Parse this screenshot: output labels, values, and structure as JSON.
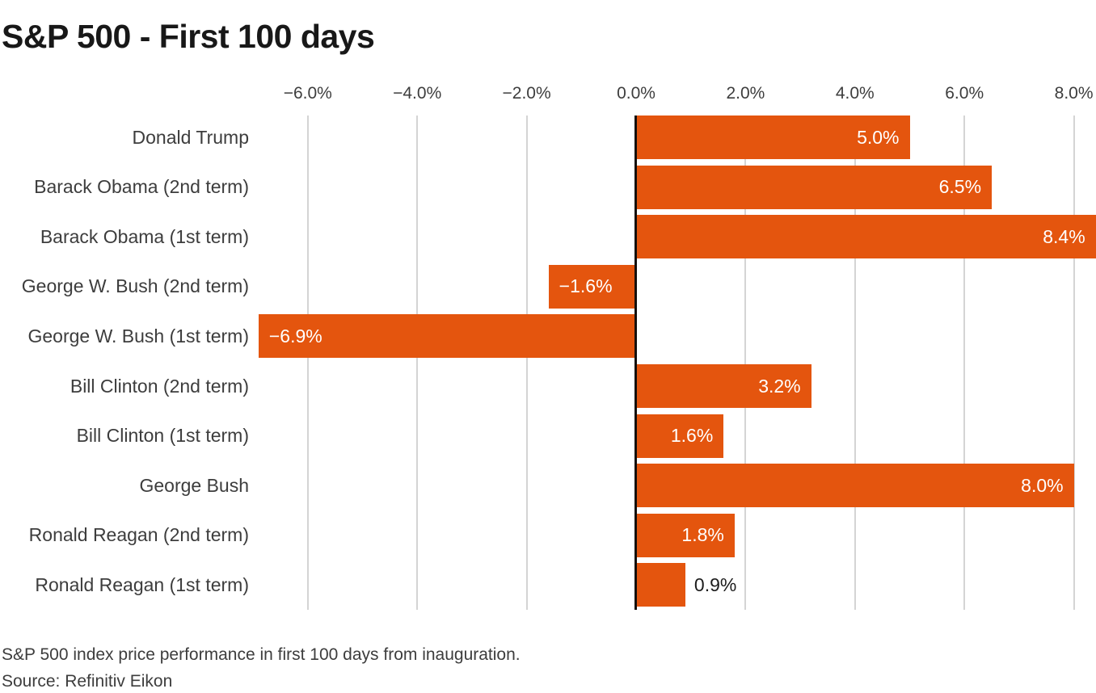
{
  "title": "S&P 500 - First 100 days",
  "footer": {
    "description": "S&P 500 index price performance in first 100 days from inauguration.",
    "source": "Source: Refinitiv Eikon"
  },
  "colors": {
    "bar": "#e4550e",
    "zero_axis": "#15100c",
    "gridline": "#d4d4d4",
    "title_text": "#181818",
    "label_text": "#3d3d3d",
    "value_label_inside": "#ffffff",
    "value_label_outside": "#1c1c1c"
  },
  "chart_data": {
    "type": "bar",
    "orientation": "horizontal",
    "title": "S&P 500 - First 100 days",
    "xlabel": "",
    "ylabel": "",
    "categories": [
      "Donald Trump",
      "Barack Obama (2nd term)",
      "Barack Obama (1st term)",
      "George W. Bush (2nd term)",
      "George W. Bush (1st term)",
      "Bill Clinton (2nd term)",
      "Bill Clinton (1st term)",
      "George Bush",
      "Ronald Reagan (2nd term)",
      "Ronald Reagan (1st term)"
    ],
    "values": [
      5.0,
      6.5,
      8.4,
      -1.6,
      -6.9,
      3.2,
      1.6,
      8.0,
      1.8,
      0.9
    ],
    "value_labels": [
      "5.0%",
      "6.5%",
      "8.4%",
      "−1.6%",
      "−6.9%",
      "3.2%",
      "1.6%",
      "8.0%",
      "1.8%",
      "0.9%"
    ],
    "x_ticks": [
      -6,
      -4,
      -2,
      0,
      2,
      4,
      6,
      8
    ],
    "x_tick_labels": [
      "−6.0%",
      "−4.0%",
      "−2.0%",
      "0.0%",
      "2.0%",
      "4.0%",
      "6.0%",
      "8.0%"
    ],
    "xlim": [
      -6.9,
      8.4
    ],
    "grid": "vertical-gridlines-at-ticks",
    "zero_axis": true,
    "legend": "none",
    "axis_position": "top"
  }
}
